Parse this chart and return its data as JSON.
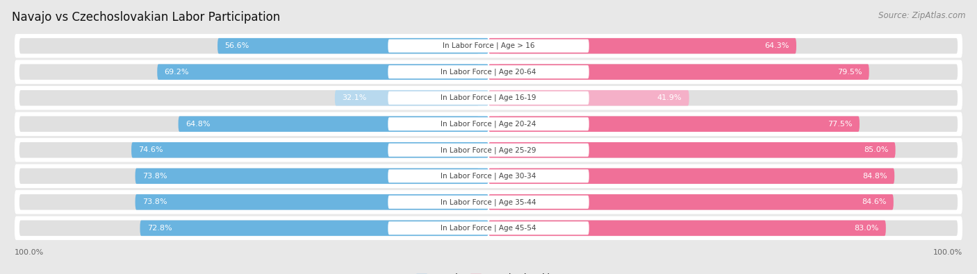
{
  "title": "Navajo vs Czechoslovakian Labor Participation",
  "source": "Source: ZipAtlas.com",
  "categories": [
    "In Labor Force | Age > 16",
    "In Labor Force | Age 20-64",
    "In Labor Force | Age 16-19",
    "In Labor Force | Age 20-24",
    "In Labor Force | Age 25-29",
    "In Labor Force | Age 30-34",
    "In Labor Force | Age 35-44",
    "In Labor Force | Age 45-54"
  ],
  "navajo_values": [
    56.6,
    69.2,
    32.1,
    64.8,
    74.6,
    73.8,
    73.8,
    72.8
  ],
  "czech_values": [
    64.3,
    79.5,
    41.9,
    77.5,
    85.0,
    84.8,
    84.6,
    83.0
  ],
  "navajo_color": "#6ab4e0",
  "navajo_color_light": "#b8d9ee",
  "czech_color": "#f07098",
  "czech_color_light": "#f5b0c8",
  "row_bg_color": "#ffffff",
  "row_alt_color": "#f0f0f0",
  "outer_bg_color": "#e8e8e8",
  "bar_bg_color": "#e0e0e0",
  "label_bg_color": "#ffffff",
  "title_fontsize": 12,
  "source_fontsize": 8.5,
  "bar_label_fontsize": 8,
  "cat_label_fontsize": 7.5,
  "legend_fontsize": 9,
  "max_val": 100.0
}
